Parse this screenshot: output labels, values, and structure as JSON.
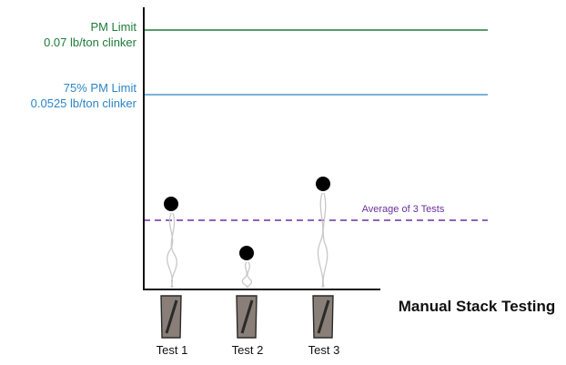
{
  "colors": {
    "pm_limit": "#1e7b3a",
    "pm_75": "#2b86c5",
    "average": "#6b2fa0",
    "axis": "#111111",
    "dot": "#000000",
    "smoke": "#c8c8c8",
    "stack_fill": "#8a7f78",
    "stack_stroke": "#2a2a2a"
  },
  "limits": {
    "pm_limit": {
      "title": "PM Limit",
      "value": "0.07 lb/ton clinker"
    },
    "pm_75": {
      "title": "75% PM Limit",
      "value": "0.0525 lb/ton clinker"
    }
  },
  "average_label": "Average of 3 Tests",
  "axis_title": "Manual Stack Testing",
  "tests": [
    {
      "label": "Test 1"
    },
    {
      "label": "Test 2"
    },
    {
      "label": "Test 3"
    }
  ],
  "icons": {
    "test_marker": "filled-circle-icon",
    "plume": "smoke-plume-icon",
    "stack": "smokestack-icon"
  }
}
